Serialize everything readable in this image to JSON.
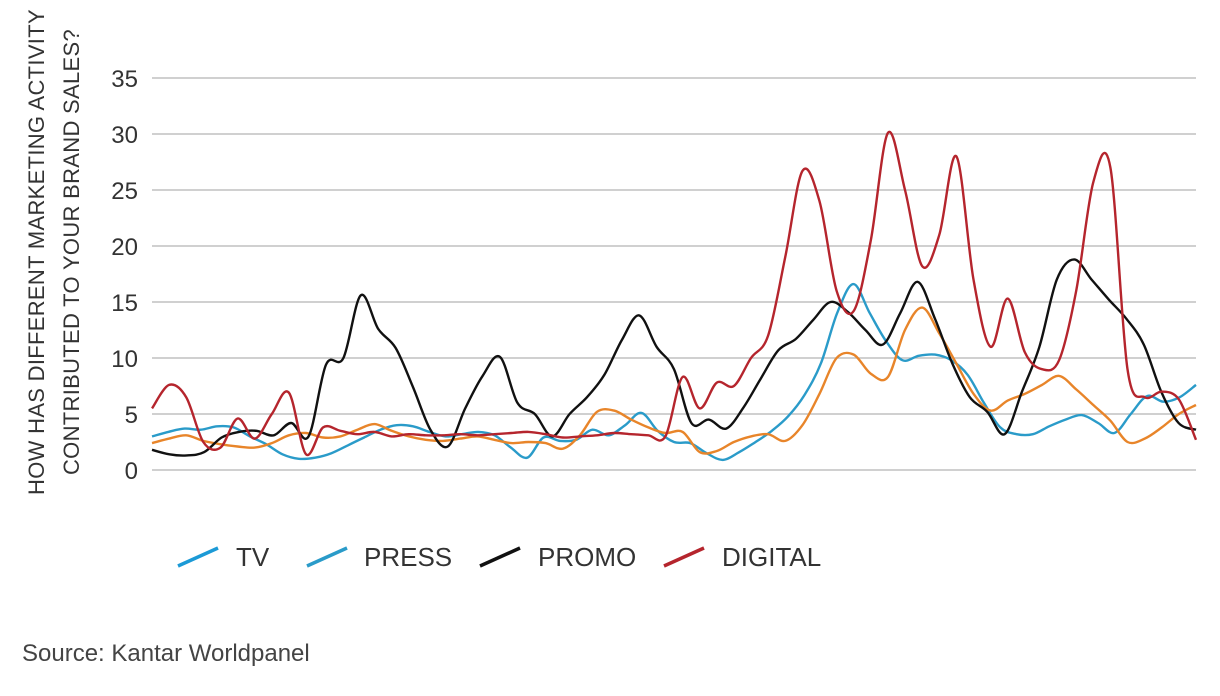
{
  "source": "Source: Kantar Worldpanel",
  "colors": {
    "tv": "#1c9ad6",
    "press": "#2a9bc9",
    "promo": "#111111",
    "digital": "#b5252d",
    "orange": "#e8852a",
    "grid": "#b4b4b4"
  },
  "chart_data": {
    "type": "line",
    "title": "",
    "ylabel_lines": [
      "HOW HAS DIFFERENT MARKETING ACTIVITY",
      "CONTRIBUTED TO YOUR BRAND SALES?"
    ],
    "xlabel": "",
    "ylim": [
      0,
      35
    ],
    "yticks": [
      "0",
      "5",
      "10",
      "15",
      "20",
      "25",
      "30",
      "35"
    ],
    "grid": true,
    "legend_position": "bottom-left",
    "legend": [
      "TV",
      "PRESS",
      "PROMO",
      "DIGITAL"
    ],
    "x": [
      0,
      1,
      2,
      3,
      4,
      5,
      6,
      7,
      8,
      9,
      10,
      11,
      12,
      13,
      14,
      15,
      16,
      17,
      18,
      19,
      20,
      21,
      22,
      23,
      24,
      25,
      26,
      27,
      28,
      29,
      30,
      31,
      32,
      33,
      34,
      35,
      36,
      37,
      38,
      39,
      40,
      41,
      42,
      43,
      44,
      45,
      46,
      47,
      48,
      49,
      50,
      51,
      52,
      53,
      54,
      55,
      56,
      57,
      58,
      59,
      60,
      61,
      62,
      63,
      64,
      65,
      66,
      67,
      68,
      69,
      70,
      71,
      72,
      73,
      74,
      75,
      76,
      77,
      78,
      79,
      80
    ],
    "series": [
      {
        "key": "press",
        "values": [
          3.0,
          3.4,
          3.7,
          3.6,
          3.9,
          3.8,
          3.0,
          2.3,
          1.4,
          1.0,
          1.1,
          1.5,
          2.2,
          2.9,
          3.6,
          4.0,
          3.9,
          3.4,
          3.0,
          3.2,
          3.4,
          3.1,
          2.0,
          1.1,
          2.9,
          2.6,
          2.7,
          3.6,
          3.1,
          4.0,
          5.1,
          3.5,
          2.5,
          2.4,
          1.5,
          0.9,
          1.6,
          2.5,
          3.5,
          4.8,
          6.7,
          9.5,
          14.0,
          16.6,
          14.0,
          11.5,
          9.8,
          10.2,
          10.3,
          9.8,
          8.5,
          6.0,
          3.8,
          3.2,
          3.2,
          3.9,
          4.5,
          4.9,
          4.2,
          3.3,
          5.0,
          6.6,
          6.1,
          6.5,
          7.6,
          null,
          null,
          null,
          null,
          null,
          null,
          null,
          null,
          null,
          null,
          null,
          null,
          null,
          null,
          null,
          null
        ]
      },
      {
        "key": "orange",
        "values": [
          2.4,
          2.8,
          3.1,
          2.6,
          2.3,
          2.1,
          2.0,
          2.4,
          3.1,
          3.3,
          2.9,
          3.0,
          3.6,
          4.1,
          3.5,
          3.0,
          2.7,
          2.6,
          2.8,
          3.0,
          2.7,
          2.4,
          2.5,
          2.4,
          1.9,
          3.1,
          5.2,
          5.3,
          4.5,
          3.8,
          3.3,
          3.4,
          1.6,
          1.7,
          2.5,
          3.0,
          3.2,
          2.6,
          4.0,
          6.8,
          10.0,
          10.3,
          8.6,
          8.3,
          12.5,
          14.5,
          12.2,
          9.5,
          6.8,
          5.3,
          6.2,
          6.8,
          7.6,
          8.4,
          7.2,
          5.8,
          4.4,
          2.5,
          2.8,
          3.8,
          5.0,
          5.8,
          null,
          null,
          null,
          null,
          null,
          null,
          null,
          null,
          null,
          null,
          null,
          null,
          null,
          null,
          null,
          null,
          null,
          null,
          null
        ]
      },
      {
        "key": "promo",
        "values": [
          1.8,
          1.4,
          1.3,
          1.6,
          2.9,
          3.4,
          3.5,
          3.1,
          4.2,
          3.0,
          9.4,
          10.0,
          15.6,
          12.6,
          10.9,
          7.4,
          3.6,
          2.1,
          5.5,
          8.4,
          10.1,
          6.0,
          5.0,
          3.0,
          5.0,
          6.5,
          8.5,
          11.6,
          13.8,
          11.0,
          9.0,
          4.2,
          4.5,
          3.7,
          5.6,
          8.2,
          10.7,
          11.7,
          13.4,
          15.0,
          14.1,
          12.5,
          11.2,
          14.0,
          16.8,
          13.5,
          9.5,
          6.5,
          5.2,
          3.2,
          7.0,
          11.0,
          17.0,
          18.8,
          17.0,
          15.2,
          13.5,
          11.2,
          7.0,
          4.2,
          3.6,
          null,
          null,
          null,
          null,
          null,
          null,
          null,
          null,
          null,
          null,
          null,
          null,
          null,
          null,
          null,
          null,
          null,
          null,
          null,
          null
        ]
      },
      {
        "key": "digital",
        "values": [
          5.5,
          7.6,
          6.5,
          2.5,
          2.0,
          4.6,
          2.8,
          5.0,
          6.9,
          1.4,
          3.8,
          3.5,
          3.2,
          3.4,
          3.0,
          3.2,
          3.1,
          3.1,
          3.2,
          3.1,
          3.2,
          3.3,
          3.4,
          3.2,
          2.9,
          3.0,
          3.1,
          3.3,
          3.2,
          3.1,
          3.0,
          8.3,
          5.5,
          7.8,
          7.5,
          10.0,
          12.0,
          19.0,
          26.7,
          24.0,
          16.0,
          14.2,
          20.5,
          30.1,
          25.0,
          18.2,
          21.0,
          28.0,
          17.0,
          11.0,
          15.3,
          10.5,
          9.0,
          9.8,
          16.0,
          25.7,
          27.0,
          9.0,
          6.5,
          7.0,
          6.3,
          2.7,
          null,
          null,
          null,
          null,
          null,
          null,
          null,
          null,
          null,
          null,
          null,
          null,
          null,
          null,
          null,
          null,
          null,
          null,
          null
        ]
      }
    ]
  }
}
